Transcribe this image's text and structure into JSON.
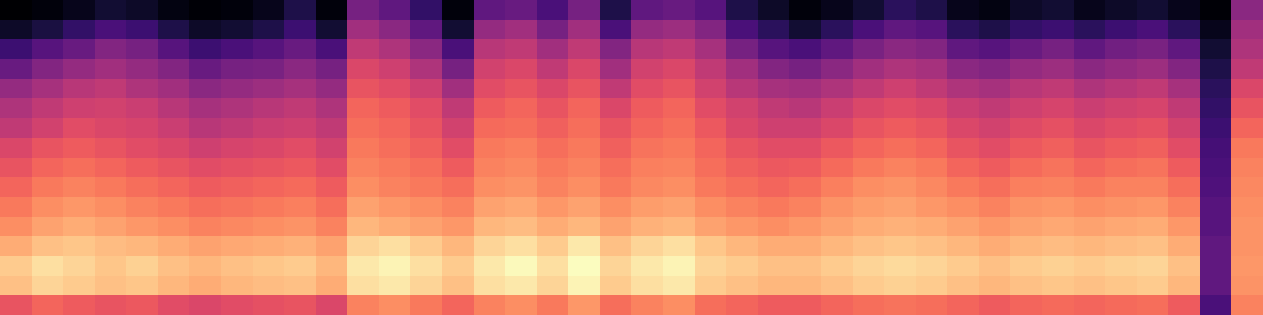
{
  "chart_data": {
    "type": "heatmap",
    "color": "magma",
    "tick_labels": false,
    "cells": [
      [
        3,
        5,
        8,
        12,
        10,
        6,
        4,
        5,
        8,
        15,
        5,
        35,
        30,
        20,
        5,
        30,
        32,
        25,
        35,
        15,
        30,
        32,
        28,
        15,
        10,
        5,
        8,
        12,
        18,
        15,
        8,
        6,
        10,
        12,
        8,
        10,
        12,
        8,
        4,
        40
      ],
      [
        10,
        14,
        20,
        25,
        22,
        15,
        10,
        12,
        15,
        22,
        12,
        45,
        40,
        30,
        12,
        42,
        45,
        35,
        45,
        25,
        42,
        44,
        38,
        25,
        18,
        12,
        18,
        25,
        30,
        28,
        18,
        15,
        20,
        22,
        18,
        22,
        25,
        18,
        8,
        45
      ],
      [
        22,
        28,
        32,
        38,
        35,
        28,
        22,
        25,
        28,
        32,
        25,
        52,
        48,
        40,
        25,
        50,
        52,
        45,
        52,
        38,
        50,
        52,
        46,
        35,
        28,
        25,
        30,
        36,
        40,
        38,
        30,
        28,
        32,
        35,
        30,
        34,
        36,
        30,
        12,
        48
      ],
      [
        32,
        38,
        42,
        45,
        42,
        38,
        32,
        35,
        36,
        40,
        35,
        58,
        55,
        48,
        35,
        56,
        58,
        52,
        58,
        45,
        56,
        58,
        52,
        45,
        38,
        35,
        40,
        45,
        48,
        46,
        40,
        38,
        42,
        44,
        40,
        42,
        44,
        38,
        15,
        52
      ],
      [
        42,
        46,
        50,
        52,
        48,
        45,
        40,
        42,
        44,
        46,
        42,
        62,
        60,
        55,
        45,
        60,
        62,
        58,
        62,
        52,
        60,
        62,
        56,
        50,
        46,
        45,
        48,
        52,
        55,
        52,
        48,
        46,
        50,
        52,
        48,
        50,
        52,
        46,
        18,
        58
      ],
      [
        48,
        52,
        55,
        56,
        54,
        50,
        46,
        48,
        50,
        52,
        48,
        66,
        64,
        60,
        52,
        64,
        66,
        62,
        66,
        58,
        64,
        66,
        60,
        56,
        52,
        50,
        54,
        58,
        60,
        58,
        54,
        52,
        55,
        57,
        54,
        56,
        57,
        52,
        20,
        62
      ],
      [
        52,
        56,
        60,
        58,
        57,
        54,
        50,
        52,
        54,
        55,
        52,
        68,
        66,
        62,
        56,
        67,
        68,
        65,
        68,
        62,
        66,
        68,
        63,
        58,
        55,
        55,
        58,
        62,
        64,
        62,
        58,
        56,
        59,
        61,
        58,
        60,
        61,
        56,
        22,
        66
      ],
      [
        58,
        62,
        64,
        62,
        60,
        58,
        55,
        57,
        58,
        60,
        56,
        70,
        68,
        65,
        60,
        70,
        71,
        68,
        70,
        65,
        69,
        70,
        66,
        62,
        60,
        60,
        63,
        66,
        68,
        66,
        62,
        60,
        63,
        65,
        62,
        64,
        65,
        60,
        24,
        70
      ],
      [
        62,
        66,
        68,
        66,
        64,
        62,
        60,
        61,
        62,
        63,
        60,
        72,
        70,
        68,
        64,
        72,
        73,
        70,
        72,
        68,
        71,
        72,
        68,
        65,
        63,
        64,
        67,
        70,
        72,
        70,
        66,
        64,
        67,
        69,
        66,
        68,
        69,
        64,
        25,
        72
      ],
      [
        66,
        70,
        72,
        70,
        68,
        66,
        64,
        65,
        66,
        67,
        64,
        74,
        72,
        70,
        68,
        74,
        75,
        72,
        74,
        70,
        73,
        74,
        70,
        68,
        66,
        68,
        71,
        74,
        75,
        73,
        70,
        68,
        71,
        72,
        70,
        72,
        72,
        68,
        26,
        73
      ],
      [
        70,
        74,
        76,
        74,
        72,
        70,
        68,
        69,
        70,
        71,
        68,
        78,
        76,
        74,
        72,
        78,
        79,
        76,
        78,
        74,
        77,
        78,
        74,
        72,
        70,
        72,
        75,
        77,
        78,
        76,
        74,
        72,
        75,
        76,
        74,
        75,
        76,
        72,
        28,
        74
      ],
      [
        74,
        78,
        80,
        78,
        76,
        74,
        72,
        73,
        74,
        75,
        72,
        82,
        80,
        78,
        76,
        82,
        83,
        80,
        82,
        78,
        81,
        82,
        78,
        76,
        74,
        76,
        78,
        80,
        81,
        80,
        78,
        76,
        78,
        79,
        78,
        79,
        80,
        76,
        28,
        75
      ],
      [
        80,
        84,
        85,
        83,
        82,
        80,
        78,
        79,
        80,
        81,
        78,
        88,
        90,
        86,
        82,
        88,
        90,
        86,
        92,
        84,
        88,
        90,
        85,
        82,
        80,
        80,
        82,
        84,
        85,
        84,
        82,
        80,
        82,
        83,
        82,
        83,
        84,
        80,
        30,
        75
      ],
      [
        86,
        90,
        88,
        85,
        87,
        84,
        82,
        84,
        85,
        86,
        82,
        92,
        94,
        90,
        86,
        92,
        95,
        90,
        96,
        88,
        92,
        94,
        88,
        86,
        84,
        84,
        86,
        88,
        89,
        88,
        86,
        84,
        86,
        87,
        86,
        87,
        88,
        84,
        30,
        76
      ],
      [
        84,
        88,
        86,
        84,
        85,
        82,
        80,
        82,
        83,
        84,
        80,
        90,
        92,
        88,
        84,
        90,
        92,
        88,
        94,
        86,
        90,
        92,
        86,
        84,
        82,
        82,
        84,
        86,
        87,
        86,
        84,
        82,
        84,
        85,
        84,
        85,
        86,
        82,
        30,
        75
      ],
      [
        62,
        66,
        64,
        62,
        63,
        60,
        58,
        60,
        61,
        62,
        58,
        72,
        74,
        70,
        66,
        72,
        74,
        70,
        76,
        68,
        72,
        74,
        68,
        66,
        64,
        64,
        66,
        68,
        69,
        68,
        66,
        64,
        66,
        67,
        66,
        67,
        68,
        64,
        25,
        72
      ]
    ]
  }
}
